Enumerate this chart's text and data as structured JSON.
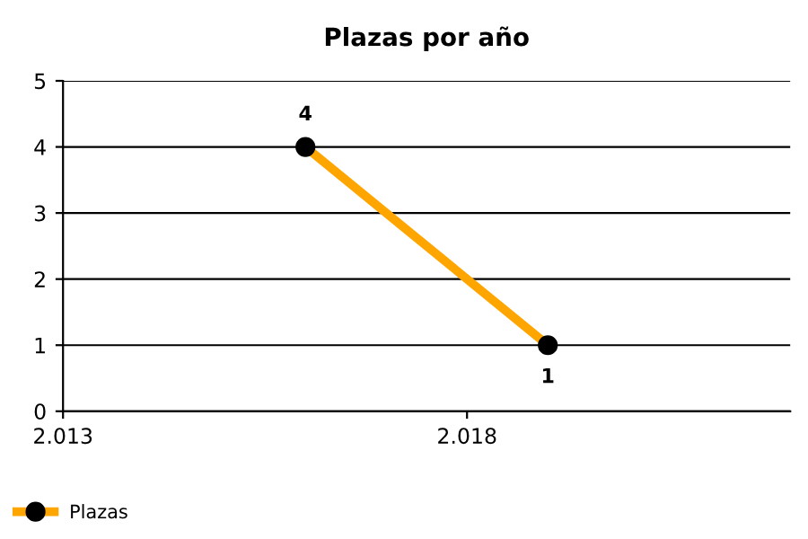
{
  "chart_data": {
    "type": "line",
    "title": "Plazas por año",
    "x": [
      2016,
      2019
    ],
    "series": [
      {
        "name": "Plazas",
        "color": "#ffa500",
        "values": [
          4,
          1
        ]
      }
    ],
    "xlim": [
      2013,
      2022
    ],
    "xticks": [
      {
        "value": 2013,
        "label": "2.013"
      },
      {
        "value": 2018,
        "label": "2.018"
      }
    ],
    "ylim": [
      0,
      5
    ],
    "yticks": [
      0,
      1,
      2,
      3,
      4,
      5
    ],
    "grid": "y",
    "legend": "bottom left",
    "marker": "circle",
    "line_style": "solid",
    "data_labels": true
  }
}
